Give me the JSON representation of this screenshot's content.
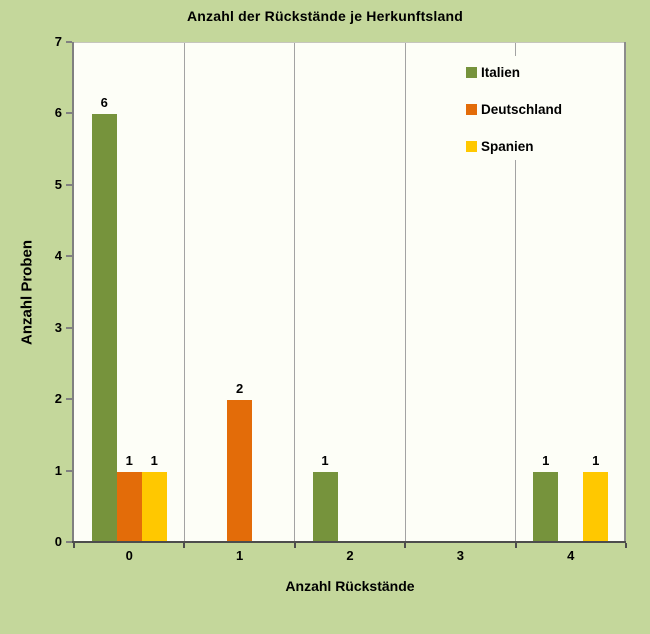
{
  "colors": {
    "background": "#c4d79b",
    "plot_background": "#fdfef7",
    "gridline": "#a3a3a3",
    "value_axis_line": "#808080",
    "category_axis_line": "#4d4d4d",
    "text": "#000000"
  },
  "chart_data": {
    "type": "bar",
    "title": "Anzahl der Rückstände je Herkunftsland",
    "xlabel": "Anzahl Rückstände",
    "ylabel": "Anzahl Proben",
    "categories": [
      "0",
      "1",
      "2",
      "3",
      "4"
    ],
    "series": [
      {
        "name": "Italien",
        "color": "#76933c",
        "values": [
          6,
          0,
          1,
          0,
          1
        ]
      },
      {
        "name": "Deutschland",
        "color": "#e36c09",
        "values": [
          1,
          2,
          0,
          0,
          0
        ]
      },
      {
        "name": "Spanien",
        "color": "#ffc800",
        "values": [
          1,
          0,
          0,
          0,
          1
        ]
      }
    ],
    "ylim": [
      0,
      7
    ],
    "ytick_step": 1,
    "grid": "vertical-between-categories",
    "legend_position": "top-right",
    "bar_labels": true
  }
}
